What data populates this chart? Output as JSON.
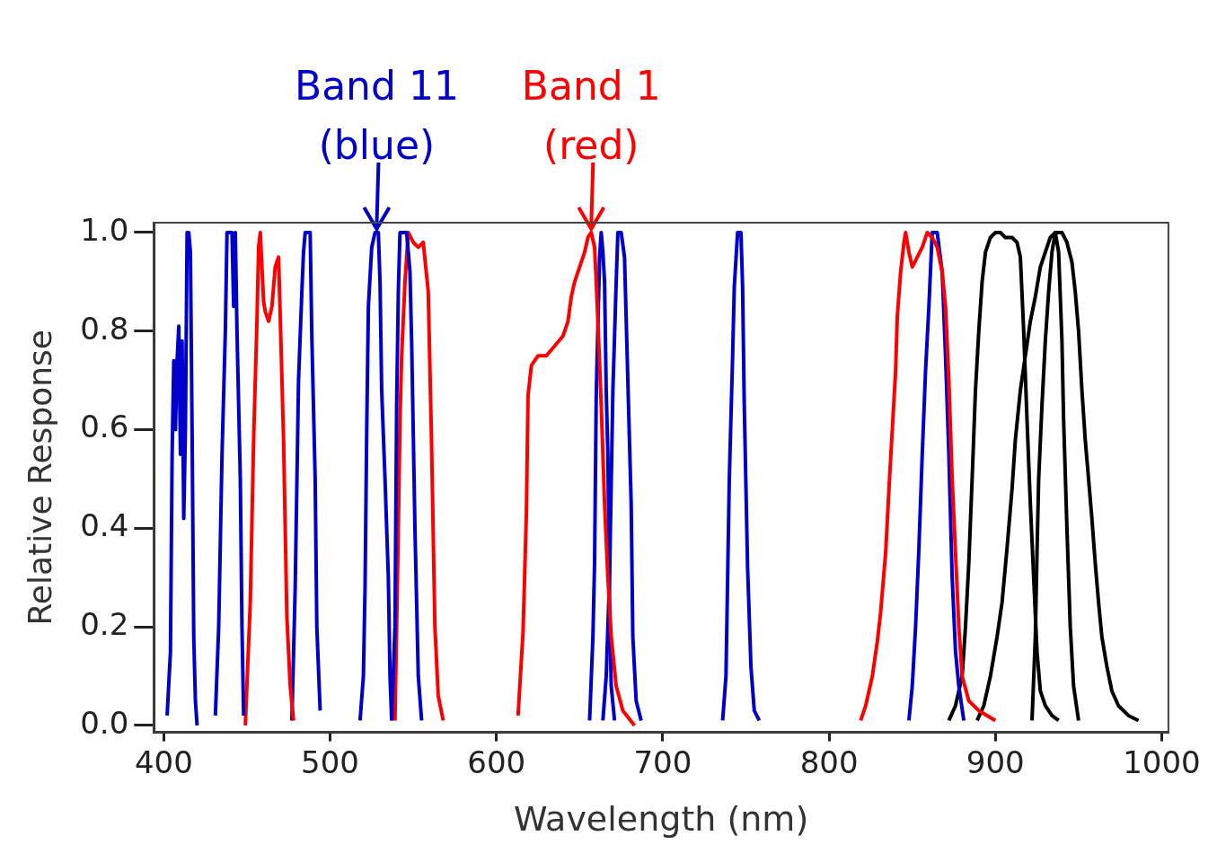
{
  "chart_data": {
    "type": "line",
    "xlabel": "Wavelength (nm)",
    "ylabel": "Relative Response",
    "xlim": [
      394,
      1004
    ],
    "xticks": [
      400,
      500,
      600,
      700,
      800,
      900,
      1000
    ],
    "ylim": [
      -0.014,
      1.02
    ],
    "yticks": [
      {
        "value": 0,
        "label": "0.0"
      },
      {
        "value": 0.2,
        "label": "0.2"
      },
      {
        "value": 0.4,
        "label": "0.4"
      },
      {
        "value": 0.6,
        "label": "0.6"
      },
      {
        "value": 0.8,
        "label": "0.8"
      },
      {
        "value": 1,
        "label": "1.0"
      }
    ],
    "grid": false,
    "legend": false,
    "annotations": [
      {
        "text": "Band 11\n(blue)",
        "x": 528,
        "y": 1.0
      },
      {
        "text": "Band 1\n(red)",
        "x": 657,
        "y": 1.0
      }
    ],
    "series": [
      {
        "color": "#0000cc",
        "x": [
          402,
          404,
          405,
          406,
          407,
          408,
          409,
          410,
          411,
          412,
          413,
          414,
          415,
          416,
          417,
          418,
          419,
          420
        ],
        "values": [
          0.02,
          0.15,
          0.55,
          0.74,
          0.6,
          0.74,
          0.81,
          0.55,
          0.78,
          0.42,
          0.6,
          1.0,
          1.0,
          0.96,
          0.6,
          0.18,
          0.05,
          0.0
        ]
      },
      {
        "color": "#0000cc",
        "x": [
          431,
          433,
          435,
          437,
          438,
          441,
          442,
          443,
          444,
          446,
          447,
          448
        ],
        "values": [
          0.02,
          0.2,
          0.55,
          0.8,
          1.0,
          1.0,
          0.85,
          1.0,
          0.8,
          0.5,
          0.2,
          0.02
        ]
      },
      {
        "color": "#ff0000",
        "x": [
          449,
          452,
          454,
          456,
          457,
          458,
          460,
          461,
          463,
          465,
          467,
          469,
          470,
          472,
          474,
          476,
          478
        ],
        "values": [
          0.0,
          0.25,
          0.58,
          0.82,
          0.97,
          1.0,
          0.86,
          0.84,
          0.82,
          0.85,
          0.93,
          0.95,
          0.83,
          0.58,
          0.22,
          0.08,
          0.01
        ]
      },
      {
        "color": "#0000cc",
        "x": [
          477,
          479,
          481,
          483,
          484,
          485,
          488,
          489,
          491,
          492,
          494
        ],
        "values": [
          0.01,
          0.28,
          0.7,
          0.88,
          0.96,
          1.0,
          1.0,
          0.79,
          0.5,
          0.2,
          0.03
        ]
      },
      {
        "color": "#0000cc",
        "x": [
          518,
          520,
          521,
          522,
          523,
          525,
          527,
          529,
          530,
          531,
          533,
          535,
          536,
          537
        ],
        "values": [
          0.01,
          0.1,
          0.28,
          0.6,
          0.85,
          0.97,
          1.0,
          1.0,
          0.9,
          0.68,
          0.5,
          0.3,
          0.1,
          0.01
        ]
      },
      {
        "color": "#0000cc",
        "x": [
          537,
          539,
          540,
          541,
          542,
          546,
          548,
          549,
          551,
          553,
          555
        ],
        "values": [
          0.01,
          0.2,
          0.65,
          0.88,
          1.0,
          1.0,
          0.92,
          0.78,
          0.4,
          0.1,
          0.01
        ]
      },
      {
        "color": "#ff0000",
        "x": [
          539,
          541,
          542,
          543,
          545,
          547,
          550,
          553,
          556,
          559,
          561,
          563,
          565,
          568
        ],
        "values": [
          0.01,
          0.4,
          0.62,
          0.75,
          0.9,
          1.0,
          0.98,
          0.97,
          0.98,
          0.88,
          0.57,
          0.2,
          0.06,
          0.01
        ]
      },
      {
        "color": "#ff0000",
        "x": [
          613,
          616,
          618,
          619,
          621,
          625,
          630,
          635,
          640,
          643,
          645,
          647,
          650,
          653,
          655,
          657,
          659,
          660,
          661,
          663,
          665,
          667,
          669,
          672,
          676,
          683
        ],
        "values": [
          0.02,
          0.19,
          0.43,
          0.67,
          0.73,
          0.75,
          0.75,
          0.77,
          0.79,
          0.82,
          0.87,
          0.9,
          0.93,
          0.96,
          0.99,
          1.0,
          0.97,
          0.9,
          0.82,
          0.65,
          0.45,
          0.3,
          0.18,
          0.08,
          0.03,
          0.0
        ]
      },
      {
        "color": "#0000cc",
        "x": [
          656,
          658,
          659,
          660,
          662,
          663,
          664,
          665,
          666,
          667,
          668,
          669,
          671
        ],
        "values": [
          0.01,
          0.18,
          0.33,
          0.67,
          0.95,
          1.0,
          0.96,
          0.9,
          0.68,
          0.55,
          0.25,
          0.08,
          0.01
        ]
      },
      {
        "color": "#0000cc",
        "x": [
          664,
          666,
          668,
          670,
          672,
          673,
          675,
          677,
          679,
          681,
          682,
          684,
          687
        ],
        "values": [
          0.01,
          0.1,
          0.3,
          0.68,
          0.9,
          1.0,
          1.0,
          0.95,
          0.7,
          0.45,
          0.18,
          0.05,
          0.01
        ]
      },
      {
        "color": "#0000cc",
        "x": [
          736,
          738,
          739,
          740,
          742,
          743,
          745,
          747,
          748,
          749,
          751,
          753,
          755,
          758
        ],
        "values": [
          0.01,
          0.1,
          0.3,
          0.5,
          0.75,
          0.89,
          1.0,
          1.0,
          0.89,
          0.65,
          0.32,
          0.12,
          0.03,
          0.01
        ]
      },
      {
        "color": "#ff0000",
        "x": [
          819,
          822,
          826,
          829,
          831,
          834,
          836,
          838,
          840,
          841,
          843,
          845,
          846,
          848,
          850,
          853,
          856,
          859,
          862,
          865,
          868,
          870,
          872,
          874,
          876,
          878,
          880,
          884,
          890,
          900
        ],
        "values": [
          0.01,
          0.04,
          0.1,
          0.17,
          0.23,
          0.35,
          0.48,
          0.6,
          0.72,
          0.83,
          0.92,
          0.98,
          1.0,
          0.96,
          0.93,
          0.95,
          0.97,
          1.0,
          0.99,
          0.97,
          0.92,
          0.85,
          0.7,
          0.5,
          0.35,
          0.2,
          0.1,
          0.05,
          0.03,
          0.01
        ]
      },
      {
        "color": "#0000cc",
        "x": [
          848,
          850,
          852,
          854,
          856,
          858,
          860,
          862,
          865,
          868,
          870,
          872,
          874,
          876,
          878,
          881
        ],
        "values": [
          0.01,
          0.08,
          0.2,
          0.36,
          0.55,
          0.72,
          0.85,
          1.0,
          1.0,
          0.92,
          0.75,
          0.55,
          0.3,
          0.15,
          0.08,
          0.01
        ]
      },
      {
        "color": "#000000",
        "x": [
          872,
          876,
          880,
          882,
          884,
          886,
          888,
          890,
          892,
          894,
          897,
          900,
          903,
          906,
          910,
          913,
          915,
          917,
          919,
          921,
          923,
          925,
          927,
          930,
          934,
          938
        ],
        "values": [
          0.01,
          0.04,
          0.1,
          0.2,
          0.33,
          0.5,
          0.68,
          0.8,
          0.9,
          0.96,
          0.99,
          1.0,
          1.0,
          0.99,
          0.99,
          0.98,
          0.95,
          0.8,
          0.62,
          0.45,
          0.3,
          0.15,
          0.07,
          0.04,
          0.02,
          0.01
        ]
      },
      {
        "color": "#000000",
        "x": [
          889,
          893,
          897,
          901,
          904,
          907,
          910,
          912,
          915,
          918,
          921,
          924,
          927,
          930,
          933,
          936,
          940,
          943,
          946,
          948,
          950,
          952,
          954,
          956,
          958,
          960,
          962,
          964,
          967,
          970,
          974,
          980,
          986
        ],
        "values": [
          0.01,
          0.04,
          0.1,
          0.18,
          0.25,
          0.36,
          0.48,
          0.58,
          0.68,
          0.75,
          0.82,
          0.87,
          0.93,
          0.96,
          0.99,
          1.0,
          1.0,
          0.98,
          0.94,
          0.88,
          0.8,
          0.68,
          0.58,
          0.5,
          0.42,
          0.33,
          0.25,
          0.18,
          0.12,
          0.07,
          0.04,
          0.02,
          0.01
        ]
      },
      {
        "color": "#000000",
        "x": [
          922,
          924,
          925,
          926,
          928,
          930,
          932,
          934,
          936,
          938,
          940,
          941,
          943,
          945,
          947,
          950
        ],
        "values": [
          0.01,
          0.18,
          0.35,
          0.5,
          0.65,
          0.78,
          0.88,
          0.96,
          1.0,
          0.96,
          0.78,
          0.62,
          0.4,
          0.2,
          0.08,
          0.01
        ]
      }
    ]
  }
}
